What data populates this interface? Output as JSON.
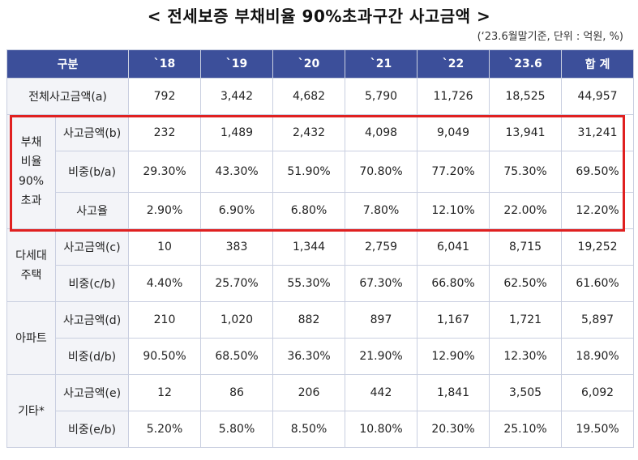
{
  "title": "< 전세보증 부채비율 90%초과구간 사고금액 >",
  "unit_note": "(‘23.6월말기준, 단위 : 억원, %)",
  "headers": [
    "구분",
    "`18",
    "`19",
    "`20",
    "`21",
    "`22",
    "`23.6",
    "합 계"
  ],
  "rows": {
    "total": {
      "label": "전체사고금액(a)",
      "values": [
        "792",
        "3,442",
        "4,682",
        "5,790",
        "11,726",
        "18,525",
        "44,957"
      ]
    },
    "g90": {
      "group_label": "부채\n비율\n90%\n초과",
      "amount": {
        "label": "사고금액(b)",
        "values": [
          "232",
          "1,489",
          "2,432",
          "4,098",
          "9,049",
          "13,941",
          "31,241"
        ]
      },
      "share": {
        "label": "비중(b/a)",
        "values": [
          "29.30%",
          "43.30%",
          "51.90%",
          "70.80%",
          "77.20%",
          "75.30%",
          "69.50%"
        ]
      },
      "rate": {
        "label": "사고율",
        "values": [
          "2.90%",
          "6.90%",
          "6.80%",
          "7.80%",
          "12.10%",
          "22.00%",
          "12.20%"
        ]
      }
    },
    "multi": {
      "group_label": "다세대\n주택",
      "amount": {
        "label": "사고금액(c)",
        "values": [
          "10",
          "383",
          "1,344",
          "2,759",
          "6,041",
          "8,715",
          "19,252"
        ]
      },
      "share": {
        "label": "비중(c/b)",
        "values": [
          "4.40%",
          "25.70%",
          "55.30%",
          "67.30%",
          "66.80%",
          "62.50%",
          "61.60%"
        ]
      }
    },
    "apt": {
      "group_label": "아파트",
      "amount": {
        "label": "사고금액(d)",
        "values": [
          "210",
          "1,020",
          "882",
          "897",
          "1,167",
          "1,721",
          "5,897"
        ]
      },
      "share": {
        "label": "비중(d/b)",
        "values": [
          "90.50%",
          "68.50%",
          "36.30%",
          "21.90%",
          "12.90%",
          "12.30%",
          "18.90%"
        ]
      }
    },
    "etc": {
      "group_label": "기타*",
      "amount": {
        "label": "사고금액(e)",
        "values": [
          "12",
          "86",
          "206",
          "442",
          "1,841",
          "3,505",
          "6,092"
        ]
      },
      "share": {
        "label": "비중(e/b)",
        "values": [
          "5.20%",
          "5.80%",
          "8.50%",
          "10.80%",
          "20.30%",
          "25.10%",
          "19.50%"
        ]
      }
    }
  },
  "colors": {
    "header_bg": "#3c4f9a",
    "highlight_border": "#e02020",
    "label_bg": "#f3f4f8"
  }
}
